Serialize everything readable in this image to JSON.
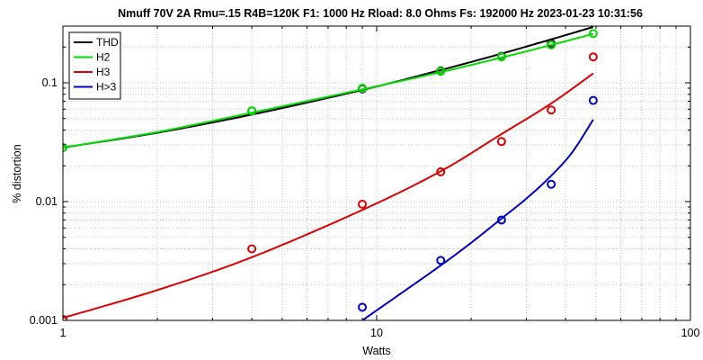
{
  "chart_data": {
    "type": "line",
    "title": "Nmuff 70V 2A Rmu=.15 R4B=120K F1: 1000 Hz   Rload: 8.0 Ohms   Fs: 192000 Hz  2023-01-23 10:31:56",
    "xlabel": "Watts",
    "ylabel": "% distortion",
    "xscale": "log",
    "yscale": "log",
    "xlim": [
      1,
      100
    ],
    "ylim": [
      0.001,
      0.3
    ],
    "grid": true,
    "legend_position": "top-left",
    "x_ticks": [
      {
        "value": 1,
        "label": "1"
      },
      {
        "value": 10,
        "label": "10"
      },
      {
        "value": 100,
        "label": "100"
      }
    ],
    "y_ticks": [
      {
        "value": 0.001,
        "label": "0.001"
      },
      {
        "value": 0.01,
        "label": "0.01"
      },
      {
        "value": 0.1,
        "label": "0.1"
      }
    ],
    "series": [
      {
        "name": "THD",
        "color": "#000000",
        "curve_x": [
          1,
          2,
          4,
          9,
          16,
          25,
          36,
          49
        ],
        "curve_y": [
          0.0285,
          0.038,
          0.054,
          0.087,
          0.128,
          0.176,
          0.232,
          0.295
        ],
        "points_x": [
          1,
          4,
          9,
          16,
          25,
          36
        ],
        "points_y": [
          0.0285,
          0.058,
          0.089,
          0.126,
          0.167,
          0.214
        ]
      },
      {
        "name": "H2",
        "color": "#00dd00",
        "curve_x": [
          1,
          2,
          4,
          9,
          16,
          25,
          36,
          49
        ],
        "curve_y": [
          0.0285,
          0.0385,
          0.056,
          0.088,
          0.123,
          0.163,
          0.208,
          0.258
        ],
        "points_x": [
          1,
          4,
          9,
          16,
          25,
          36,
          49
        ],
        "points_y": [
          0.0285,
          0.058,
          0.09,
          0.125,
          0.165,
          0.208,
          0.26
        ]
      },
      {
        "name": "H3",
        "color": "#dd0000",
        "curve_x": [
          1,
          2,
          4,
          9,
          16,
          25,
          36,
          49
        ],
        "curve_y": [
          0.00105,
          0.0018,
          0.0034,
          0.0085,
          0.018,
          0.037,
          0.067,
          0.12
        ],
        "points_x": [
          1,
          4,
          9,
          16,
          25,
          36,
          49
        ],
        "points_y": [
          0.00102,
          0.004,
          0.0095,
          0.0178,
          0.032,
          0.059,
          0.165
        ]
      },
      {
        "name": "H>3",
        "color": "#0000cc",
        "curve_x": [
          9,
          12,
          16,
          20,
          25,
          30,
          36,
          42,
          49
        ],
        "curve_y": [
          0.001,
          0.0017,
          0.0029,
          0.0045,
          0.0072,
          0.0106,
          0.0165,
          0.026,
          0.049
        ],
        "points_x": [
          9,
          16,
          25,
          36,
          49
        ],
        "points_y": [
          0.00129,
          0.0032,
          0.007,
          0.014,
          0.071
        ]
      }
    ]
  }
}
